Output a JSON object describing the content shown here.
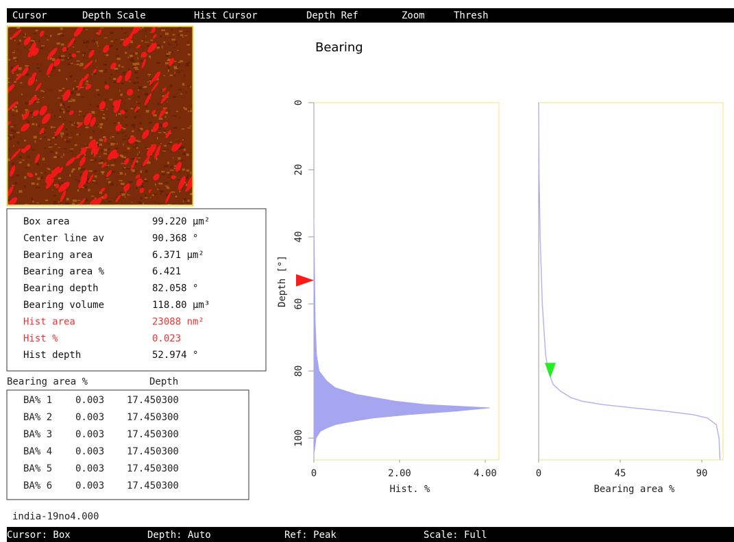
{
  "menu": [
    "Cursor",
    "Depth Scale",
    "Hist Cursor",
    "Depth Ref",
    "Zoom",
    "Thresh"
  ],
  "title": "Bearing",
  "stats": {
    "rows": [
      {
        "label": "Box area",
        "value": "99.220 µm²",
        "color": "#111111"
      },
      {
        "label": "Center line av",
        "value": "90.368 °",
        "color": "#111111"
      },
      {
        "label": "Bearing area",
        "value": "6.371 µm²",
        "color": "#111111"
      },
      {
        "label": "Bearing area %",
        "value": "6.421",
        "color": "#111111"
      },
      {
        "label": "Bearing depth",
        "value": "82.058 °",
        "color": "#111111"
      },
      {
        "label": "Bearing volume",
        "value": "118.80 µm³",
        "color": "#111111"
      },
      {
        "label": "Hist area",
        "value": "23088 nm²",
        "color": "#ee3333"
      },
      {
        "label": "Hist %",
        "value": "0.023",
        "color": "#ee3333"
      },
      {
        "label": "Hist depth",
        "value": "52.974 °",
        "color": "#111111"
      }
    ]
  },
  "ba_table": {
    "header": [
      "Bearing area %",
      "Depth"
    ],
    "rows": [
      [
        "BA% 1",
        "0.003",
        "17.450300"
      ],
      [
        "BA% 2",
        "0.003",
        "17.450300"
      ],
      [
        "BA% 3",
        "0.003",
        "17.450300"
      ],
      [
        "BA% 4",
        "0.003",
        "17.450300"
      ],
      [
        "BA% 5",
        "0.003",
        "17.450300"
      ],
      [
        "BA% 6",
        "0.003",
        "17.450300"
      ]
    ]
  },
  "filename": "india-19no4.000",
  "status": [
    "Cursor: Box",
    "Depth: Auto",
    "Ref: Peak",
    "Scale: Full"
  ],
  "chart_data": [
    {
      "type": "area",
      "xlabel": "Hist. %",
      "ylabel": "Depth [°]",
      "xlim": [
        0,
        4.32
      ],
      "xticks": [
        0,
        {
          "value": 2,
          "label": "2.00"
        },
        {
          "value": 4,
          "label": "4.00"
        }
      ],
      "ylim": [
        106.5,
        0
      ],
      "yticks": [
        0,
        20,
        40,
        60,
        80,
        100
      ],
      "depth": [
        35,
        45,
        55,
        65,
        75,
        80,
        83,
        85,
        87,
        89,
        90,
        91,
        92,
        93,
        94,
        95,
        96,
        97,
        98,
        100,
        104
      ],
      "values": [
        0,
        0.01,
        0.02,
        0.03,
        0.06,
        0.12,
        0.3,
        0.5,
        1.0,
        1.9,
        2.6,
        4.1,
        3.3,
        2.2,
        1.4,
        0.9,
        0.5,
        0.3,
        0.15,
        0.05,
        0.01
      ],
      "color": "#a6a6f0",
      "cursor": {
        "depth": 52.974,
        "color": "#ff1a1a"
      }
    },
    {
      "type": "line",
      "xlabel": "Bearing area %",
      "xlim": [
        0,
        101.7
      ],
      "xticks": [
        0,
        45,
        90
      ],
      "ylim": [
        106.5,
        0
      ],
      "depth": [
        0,
        20,
        40,
        60,
        75,
        80,
        84,
        86,
        88,
        89,
        90,
        91,
        92,
        93,
        94,
        96,
        100,
        106.5
      ],
      "values": [
        0,
        0.2,
        0.8,
        2.0,
        3.8,
        5.2,
        8,
        12,
        18,
        24,
        35,
        52,
        70,
        85,
        93,
        98,
        99.5,
        100
      ],
      "color": "#b4b4f2",
      "cursor": {
        "value": 6.421,
        "depth": 82.058,
        "color": "#22ee22"
      }
    }
  ]
}
